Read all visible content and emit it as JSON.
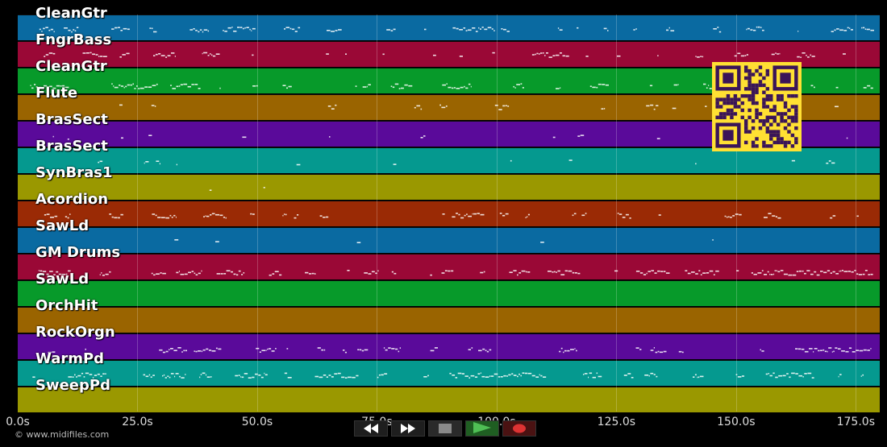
{
  "tracks": [
    {
      "name": "CleanGtr",
      "color": "#0a6aa1",
      "density": 0.8
    },
    {
      "name": "FngrBass",
      "color": "#9a0836",
      "density": 0.7
    },
    {
      "name": "CleanGtr",
      "color": "#079a2a",
      "density": 0.8
    },
    {
      "name": "Flute",
      "color": "#9a6400",
      "density": 0.4
    },
    {
      "name": "BrasSect",
      "color": "#5a0a9a",
      "density": 0.3
    },
    {
      "name": "BrasSect",
      "color": "#05998f",
      "density": 0.3
    },
    {
      "name": "SynBras1",
      "color": "#9a9800",
      "density": 0.05
    },
    {
      "name": "Acordion",
      "color": "#9a2a05",
      "density": 0.7
    },
    {
      "name": "SawLd",
      "color": "#0a6aa1",
      "density": 0.08
    },
    {
      "name": "GM Drums",
      "color": "#9a0836",
      "density": 0.9
    },
    {
      "name": "SawLd",
      "color": "#079a2a",
      "density": 0.02
    },
    {
      "name": "OrchHit",
      "color": "#9a6400",
      "density": 0.03
    },
    {
      "name": "RockOrgn",
      "color": "#5a0a9a",
      "density": 0.8
    },
    {
      "name": "WarmPd",
      "color": "#05998f",
      "density": 0.9
    },
    {
      "name": "SweepPd",
      "color": "#9a9800",
      "density": 0.02
    }
  ],
  "timeline": {
    "ticks": [
      "0.0s",
      "25.0s",
      "50.0s",
      "75.0s",
      "100.0s",
      "125.0s",
      "150.0s",
      "175.0s"
    ],
    "tick_seconds": [
      0,
      25,
      50,
      75,
      100,
      125,
      150,
      175
    ],
    "duration_s": 180
  },
  "transport": {
    "buttons": [
      {
        "name": "rewind-button",
        "icon": "rewind-icon",
        "active": false,
        "bg": "#1e1e1e"
      },
      {
        "name": "fast-forward-button",
        "icon": "fast-forward-icon",
        "active": false,
        "bg": "#1e1e1e"
      },
      {
        "name": "stop-button",
        "icon": "stop-icon",
        "active": false,
        "bg": "#2a2a2a"
      },
      {
        "name": "play-button",
        "icon": "play-icon",
        "active": true,
        "bg": "#1f5e22"
      },
      {
        "name": "record-button",
        "icon": "record-icon",
        "active": false,
        "bg": "#4a1212"
      }
    ]
  },
  "copyright": "© www.midifiles.com"
}
